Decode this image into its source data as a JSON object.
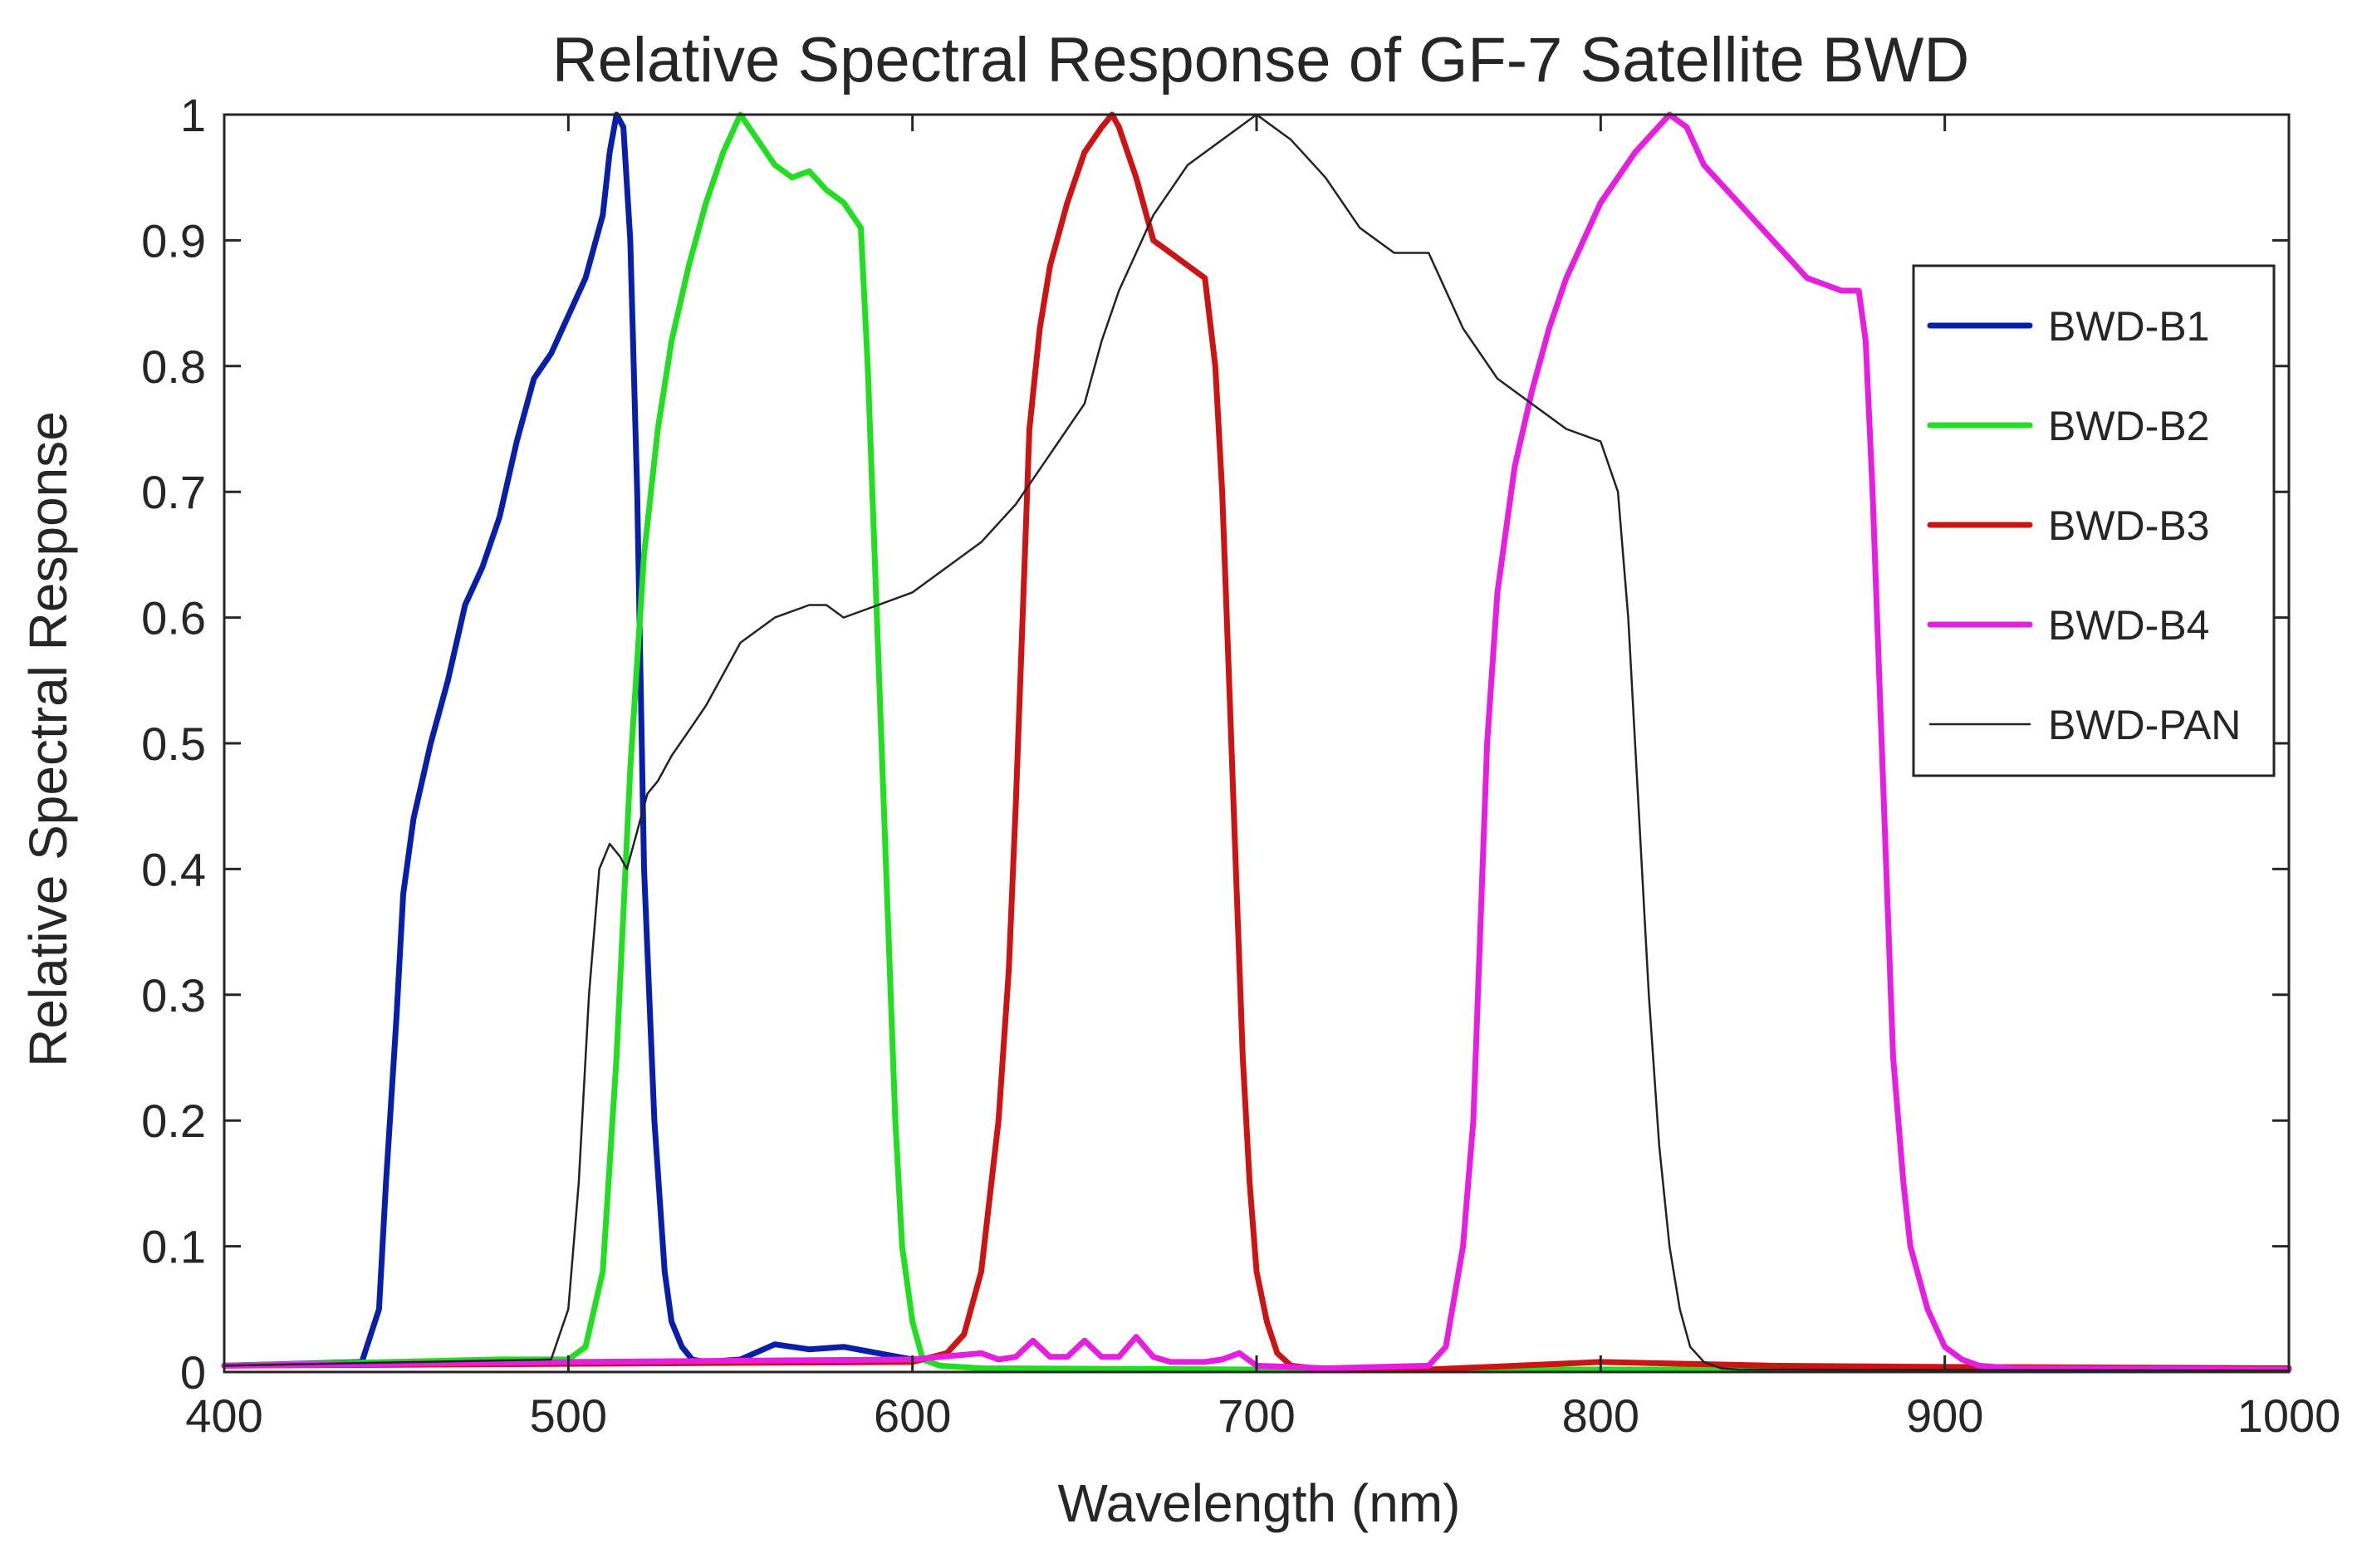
{
  "chart_data": {
    "type": "line",
    "title": "Relative Spectral Response of GF-7 Satellite BWD",
    "xlabel": "Wavelength (nm)",
    "ylabel": "Relative Spectral Response",
    "xlim": [
      400,
      1000
    ],
    "ylim": [
      0,
      1
    ],
    "xticks": [
      400,
      500,
      600,
      700,
      800,
      900,
      1000
    ],
    "yticks": [
      0,
      0.1,
      0.2,
      0.3,
      0.4,
      0.5,
      0.6,
      0.7,
      0.8,
      0.9,
      1
    ],
    "xtick_labels": [
      "400",
      "500",
      "600",
      "700",
      "800",
      "900",
      "1000"
    ],
    "ytick_labels": [
      "0",
      "0.1",
      "0.2",
      "0.3",
      "0.4",
      "0.5",
      "0.6",
      "0.7",
      "0.8",
      "0.9",
      "1"
    ],
    "grid": false,
    "legend_position": "top-right",
    "series": [
      {
        "name": "BWD-B1",
        "color": "#0a1fa8",
        "weight": "thick",
        "x": [
          400,
          440,
          445,
          447,
          450,
          452,
          455,
          460,
          465,
          470,
          475,
          480,
          485,
          490,
          495,
          500,
          505,
          510,
          512,
          514,
          516,
          518,
          520,
          522,
          525,
          528,
          530,
          533,
          536,
          540,
          550,
          560,
          570,
          580,
          590,
          600
        ],
        "y": [
          0.005,
          0.008,
          0.05,
          0.15,
          0.28,
          0.38,
          0.44,
          0.5,
          0.55,
          0.61,
          0.64,
          0.68,
          0.74,
          0.79,
          0.81,
          0.84,
          0.87,
          0.92,
          0.97,
          1.0,
          0.99,
          0.9,
          0.7,
          0.4,
          0.2,
          0.08,
          0.04,
          0.02,
          0.01,
          0.008,
          0.01,
          0.022,
          0.018,
          0.02,
          0.015,
          0.01
        ]
      },
      {
        "name": "BWD-B2",
        "color": "#22dd22",
        "weight": "thick",
        "x": [
          400,
          480,
          490,
          500,
          505,
          510,
          514,
          518,
          522,
          526,
          530,
          535,
          540,
          545,
          550,
          555,
          560,
          565,
          570,
          575,
          580,
          585,
          587,
          589,
          591,
          593,
          595,
          597,
          600,
          603,
          608,
          620,
          700,
          800,
          1000
        ],
        "y": [
          0.005,
          0.01,
          0.01,
          0.01,
          0.02,
          0.08,
          0.25,
          0.48,
          0.65,
          0.75,
          0.82,
          0.88,
          0.93,
          0.97,
          1.0,
          0.98,
          0.96,
          0.95,
          0.955,
          0.94,
          0.93,
          0.91,
          0.8,
          0.65,
          0.5,
          0.35,
          0.2,
          0.1,
          0.04,
          0.01,
          0.005,
          0.003,
          0.002,
          0.002,
          0.002
        ]
      },
      {
        "name": "BWD-B3",
        "color": "#cc1414",
        "weight": "thick",
        "x": [
          400,
          600,
          610,
          615,
          620,
          625,
          628,
          630,
          632,
          634,
          637,
          640,
          645,
          650,
          655,
          658,
          660,
          665,
          670,
          675,
          680,
          685,
          688,
          690,
          692,
          694,
          696,
          698,
          700,
          703,
          706,
          710,
          720,
          750,
          800,
          850,
          900,
          1000
        ],
        "y": [
          0.005,
          0.008,
          0.015,
          0.03,
          0.08,
          0.2,
          0.32,
          0.45,
          0.6,
          0.75,
          0.83,
          0.88,
          0.93,
          0.97,
          0.99,
          1.0,
          0.99,
          0.95,
          0.9,
          0.89,
          0.88,
          0.87,
          0.8,
          0.7,
          0.55,
          0.4,
          0.25,
          0.15,
          0.08,
          0.04,
          0.015,
          0.005,
          0.002,
          0.002,
          0.008,
          0.005,
          0.004,
          0.003
        ]
      },
      {
        "name": "BWD-B4",
        "color": "#e61ee0",
        "weight": "thick",
        "x": [
          400,
          500,
          600,
          620,
          625,
          630,
          635,
          640,
          645,
          650,
          655,
          660,
          665,
          670,
          675,
          680,
          685,
          690,
          695,
          700,
          720,
          750,
          755,
          760,
          763,
          765,
          767,
          770,
          775,
          780,
          785,
          790,
          800,
          810,
          820,
          825,
          830,
          840,
          850,
          860,
          865,
          870,
          875,
          877,
          879,
          881,
          883,
          885,
          888,
          890,
          895,
          900,
          905,
          910,
          920,
          1000
        ],
        "y": [
          0.005,
          0.008,
          0.01,
          0.015,
          0.01,
          0.012,
          0.025,
          0.012,
          0.012,
          0.025,
          0.012,
          0.012,
          0.028,
          0.012,
          0.008,
          0.008,
          0.008,
          0.01,
          0.015,
          0.005,
          0.003,
          0.005,
          0.02,
          0.1,
          0.2,
          0.35,
          0.5,
          0.62,
          0.72,
          0.78,
          0.83,
          0.87,
          0.93,
          0.97,
          1.0,
          0.99,
          0.96,
          0.93,
          0.9,
          0.87,
          0.865,
          0.86,
          0.86,
          0.82,
          0.7,
          0.55,
          0.4,
          0.25,
          0.15,
          0.1,
          0.05,
          0.02,
          0.01,
          0.005,
          0.003,
          0.002
        ]
      },
      {
        "name": "BWD-PAN",
        "color": "#222222",
        "weight": "thin",
        "x": [
          400,
          495,
          500,
          503,
          506,
          509,
          512,
          515,
          517,
          520,
          523,
          526,
          530,
          535,
          540,
          550,
          560,
          570,
          575,
          580,
          590,
          600,
          610,
          620,
          630,
          640,
          650,
          655,
          660,
          665,
          670,
          680,
          690,
          695,
          700,
          710,
          720,
          730,
          740,
          750,
          760,
          770,
          780,
          790,
          800,
          805,
          808,
          811,
          814,
          817,
          820,
          823,
          826,
          830,
          835,
          840,
          1000
        ],
        "y": [
          0.005,
          0.01,
          0.05,
          0.15,
          0.3,
          0.4,
          0.42,
          0.41,
          0.4,
          0.43,
          0.46,
          0.47,
          0.49,
          0.51,
          0.53,
          0.58,
          0.6,
          0.61,
          0.61,
          0.6,
          0.61,
          0.62,
          0.64,
          0.66,
          0.69,
          0.73,
          0.77,
          0.82,
          0.86,
          0.89,
          0.92,
          0.96,
          0.98,
          0.99,
          1.0,
          0.98,
          0.95,
          0.91,
          0.89,
          0.89,
          0.83,
          0.79,
          0.77,
          0.75,
          0.74,
          0.7,
          0.6,
          0.45,
          0.3,
          0.18,
          0.1,
          0.05,
          0.02,
          0.008,
          0.003,
          0.002,
          0.001
        ]
      }
    ]
  }
}
